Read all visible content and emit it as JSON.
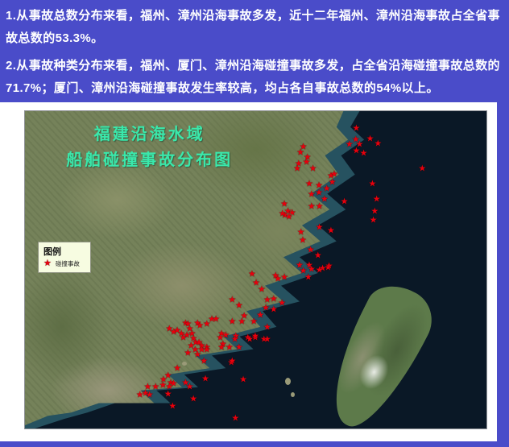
{
  "page": {
    "background_color": "#4a4cc9",
    "text_color": "#ffffff"
  },
  "paragraphs": [
    {
      "text": "1.从事故总数分布来看，福州、漳州沿海事故多发，近十二年福州、漳州沿海事故占全省事故总数的53.3%。"
    },
    {
      "text": "2.从事故种类分布来看，福州、厦门、漳州沿海碰撞事故多发，占全省沿海碰撞事故总数的71.7%；厦门、漳州沿海碰撞事故发生率较高，均占各自事故总数的54%以上。"
    }
  ],
  "map": {
    "title_line1": "福建沿海水域",
    "title_line2": "船舶碰撞事故分布图",
    "title_color": "#3ae8ab",
    "ocean_color": "#0a1826",
    "marker_color": "#e8000d",
    "legend": {
      "title": "图例",
      "marker": "★",
      "item_label": "碰撞事故"
    },
    "stars": [
      [
        60.3,
        11.4
      ],
      [
        59.7,
        13.1
      ],
      [
        61.2,
        14.6
      ],
      [
        61.0,
        16.2
      ],
      [
        59.3,
        16.7
      ],
      [
        59.0,
        18.4
      ],
      [
        62.4,
        18.2
      ],
      [
        61.6,
        23.2
      ],
      [
        63.7,
        23.5
      ],
      [
        65.4,
        24.5
      ],
      [
        66.3,
        20.5
      ],
      [
        67.0,
        20.0
      ],
      [
        66.6,
        22.5
      ],
      [
        62.1,
        26.5
      ],
      [
        63.7,
        25.8
      ],
      [
        64.9,
        28.0
      ],
      [
        62.1,
        30.3
      ],
      [
        63.8,
        30.3
      ],
      [
        56.2,
        29.5
      ],
      [
        57.0,
        31.6
      ],
      [
        57.9,
        32.3
      ],
      [
        57.2,
        33.6
      ],
      [
        56.3,
        33.1
      ],
      [
        55.8,
        32.6
      ],
      [
        71.8,
        5.6
      ],
      [
        71.7,
        9.1
      ],
      [
        74.8,
        8.8
      ],
      [
        70.3,
        10.6
      ],
      [
        72.5,
        10.6
      ],
      [
        71.8,
        12.6
      ],
      [
        73.4,
        13.4
      ],
      [
        76.5,
        10.4
      ],
      [
        86.1,
        18.2
      ],
      [
        75.3,
        23.2
      ],
      [
        76.2,
        27.8
      ],
      [
        75.8,
        31.8
      ],
      [
        75.5,
        34.6
      ],
      [
        69.2,
        28.8
      ],
      [
        63.8,
        36.9
      ],
      [
        66.3,
        37.9
      ],
      [
        59.8,
        38.4
      ],
      [
        60.2,
        40.9
      ],
      [
        61.9,
        43.9
      ],
      [
        63.5,
        45.7
      ],
      [
        59.5,
        48.7
      ],
      [
        61.6,
        48.7
      ],
      [
        64.5,
        49.7
      ],
      [
        65.9,
        49.0
      ],
      [
        54.3,
        52.0
      ],
      [
        49.2,
        51.5
      ],
      [
        50.1,
        54.3
      ],
      [
        54.8,
        53.0
      ],
      [
        56.2,
        52.5
      ],
      [
        60.3,
        50.5
      ],
      [
        62.1,
        50.0
      ],
      [
        63.8,
        50.3
      ],
      [
        65.7,
        49.5
      ],
      [
        61.4,
        52.5
      ],
      [
        51.3,
        56.3
      ],
      [
        52.5,
        59.6
      ],
      [
        53.9,
        59.3
      ],
      [
        55.7,
        60.6
      ],
      [
        52.2,
        62.1
      ],
      [
        53.9,
        62.6
      ],
      [
        51.0,
        64.4
      ],
      [
        49.6,
        66.4
      ],
      [
        52.5,
        68.2
      ],
      [
        51.8,
        72.0
      ],
      [
        49.9,
        71.5
      ],
      [
        47.0,
        66.4
      ],
      [
        44.9,
        59.6
      ],
      [
        46.4,
        61.4
      ],
      [
        47.5,
        64.6
      ],
      [
        44.9,
        66.4
      ],
      [
        31.3,
        68.9
      ],
      [
        32.2,
        69.7
      ],
      [
        33.0,
        69.4
      ],
      [
        33.9,
        70.2
      ],
      [
        34.8,
        66.9
      ],
      [
        35.3,
        67.2
      ],
      [
        35.7,
        68.9
      ],
      [
        36.2,
        70.2
      ],
      [
        36.5,
        71.9
      ],
      [
        35.1,
        70.7
      ],
      [
        34.3,
        71.5
      ],
      [
        37.4,
        66.9
      ],
      [
        37.9,
        67.7
      ],
      [
        39.4,
        67.2
      ],
      [
        40.5,
        65.7
      ],
      [
        41.4,
        65.7
      ],
      [
        37.0,
        73.2
      ],
      [
        38.3,
        74.0
      ],
      [
        39.4,
        74.7
      ],
      [
        36.0,
        74.0
      ],
      [
        42.6,
        70.2
      ],
      [
        43.5,
        70.7
      ],
      [
        45.7,
        71.0
      ],
      [
        48.3,
        71.5
      ],
      [
        49.9,
        71.0
      ],
      [
        42.9,
        73.7
      ],
      [
        46.4,
        74.7
      ],
      [
        42.3,
        71.5
      ],
      [
        45.5,
        72.0
      ],
      [
        48.7,
        72.0
      ],
      [
        52.5,
        72.2
      ],
      [
        37.7,
        73.2
      ],
      [
        36.9,
        75.3
      ],
      [
        38.3,
        75.3
      ],
      [
        39.4,
        75.3
      ],
      [
        35.3,
        76.5
      ],
      [
        37.4,
        77.0
      ],
      [
        42.6,
        74.7
      ],
      [
        44.3,
        74.7
      ],
      [
        38.8,
        79.0
      ],
      [
        44.7,
        79.5
      ],
      [
        44.9,
        79.0
      ],
      [
        33.0,
        81.1
      ],
      [
        39.1,
        84.6
      ],
      [
        47.3,
        84.8
      ],
      [
        31.0,
        83.6
      ],
      [
        30.0,
        84.8
      ],
      [
        31.6,
        85.9
      ],
      [
        26.6,
        87.1
      ],
      [
        28.3,
        87.1
      ],
      [
        29.9,
        86.6
      ],
      [
        31.3,
        87.1
      ],
      [
        32.2,
        86.1
      ],
      [
        34.8,
        85.9
      ],
      [
        35.7,
        87.1
      ],
      [
        24.9,
        89.6
      ],
      [
        26.1,
        89.1
      ],
      [
        27.0,
        89.6
      ],
      [
        31.0,
        89.4
      ],
      [
        36.5,
        90.9
      ],
      [
        32.0,
        93.2
      ],
      [
        45.6,
        97.0
      ]
    ]
  }
}
